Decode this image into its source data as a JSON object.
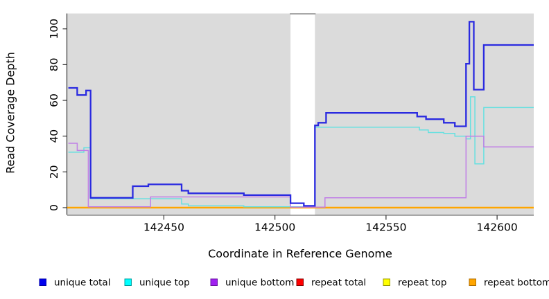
{
  "chart_data": {
    "type": "line",
    "subtype": "step-after-coverage-plot",
    "title": "",
    "xlabel": "Coordinate in Reference Genome",
    "ylabel": "Read Coverage Depth",
    "xlim": [
      142406.5,
      142616.5
    ],
    "ylim": [
      0,
      104
    ],
    "x_ticks": [
      142450,
      142500,
      142550,
      142600
    ],
    "y_ticks": [
      0,
      20,
      40,
      60,
      80,
      100
    ],
    "grid": "off",
    "plot_bg": "#dbdbdb",
    "page_bg": "#ffffff",
    "gap_region": {
      "x_start": 142507,
      "x_end": 142518,
      "color": "#ffffff",
      "note": "white no-data band across full plot height",
      "top_border_color": "#8c8c8c"
    },
    "series": [
      {
        "name": "repeat total",
        "color": "#ff0000",
        "width": 1.4,
        "points": [
          [
            142406.5,
            0
          ]
        ]
      },
      {
        "name": "repeat top",
        "color": "#ffff00",
        "width": 1.4,
        "points": [
          [
            142406.5,
            0
          ]
        ]
      },
      {
        "name": "repeat bottom",
        "color": "#ffa500",
        "width": 2.4,
        "points": [
          [
            142406.5,
            0
          ]
        ]
      },
      {
        "name": "unique top",
        "color": "#66e0e0",
        "width": 1.5,
        "points": [
          [
            142407,
            31
          ],
          [
            142414,
            33.5
          ],
          [
            142417,
            5
          ],
          [
            142458,
            2
          ],
          [
            142461,
            1
          ],
          [
            142486,
            0.5
          ],
          [
            142518,
            45
          ],
          [
            142565,
            43.5
          ],
          [
            142569,
            42
          ],
          [
            142576,
            41.5
          ],
          [
            142581,
            40
          ],
          [
            142586,
            38.5
          ],
          [
            142588,
            62
          ],
          [
            142590,
            24.5
          ],
          [
            142594,
            56
          ]
        ]
      },
      {
        "name": "unique bottom",
        "color": "#c07fe6",
        "width": 1.5,
        "points": [
          [
            142407,
            36
          ],
          [
            142411,
            32
          ],
          [
            142416,
            0.5
          ],
          [
            142444,
            6
          ],
          [
            142507,
            0.3
          ],
          [
            142522.5,
            5.5
          ],
          [
            142586,
            40
          ],
          [
            142594,
            34
          ]
        ]
      },
      {
        "name": "unique total",
        "color": "#2a2ae0",
        "width": 2.3,
        "points": [
          [
            142407,
            67
          ],
          [
            142411,
            63
          ],
          [
            142415,
            65.5
          ],
          [
            142417,
            5.5
          ],
          [
            142436,
            12
          ],
          [
            142443,
            13
          ],
          [
            142458,
            9.5
          ],
          [
            142461,
            8
          ],
          [
            142486,
            7
          ],
          [
            142507,
            2.5
          ],
          [
            142513,
            1
          ],
          [
            142518,
            46
          ],
          [
            142519.5,
            47.5
          ],
          [
            142523,
            53
          ],
          [
            142564,
            51
          ],
          [
            142568,
            49.5
          ],
          [
            142576,
            47.5
          ],
          [
            142581,
            45.5
          ],
          [
            142586,
            80.5
          ],
          [
            142587.5,
            104
          ],
          [
            142589.5,
            66
          ],
          [
            142594,
            91
          ]
        ]
      }
    ],
    "legend": {
      "position": "bottom",
      "items": [
        {
          "label": "unique total",
          "color": "#0000ee",
          "border": "#0000a8"
        },
        {
          "label": "unique top",
          "color": "#00ffff",
          "border": "#00a0a0"
        },
        {
          "label": "unique bottom",
          "color": "#a020f0",
          "border": "#6d14a6"
        },
        {
          "label": "repeat total",
          "color": "#ff0000",
          "border": "#8b0000"
        },
        {
          "label": "repeat top",
          "color": "#ffff00",
          "border": "#9c9c00"
        },
        {
          "label": "repeat bottom",
          "color": "#ffa500",
          "border": "#b06f00"
        }
      ]
    }
  }
}
